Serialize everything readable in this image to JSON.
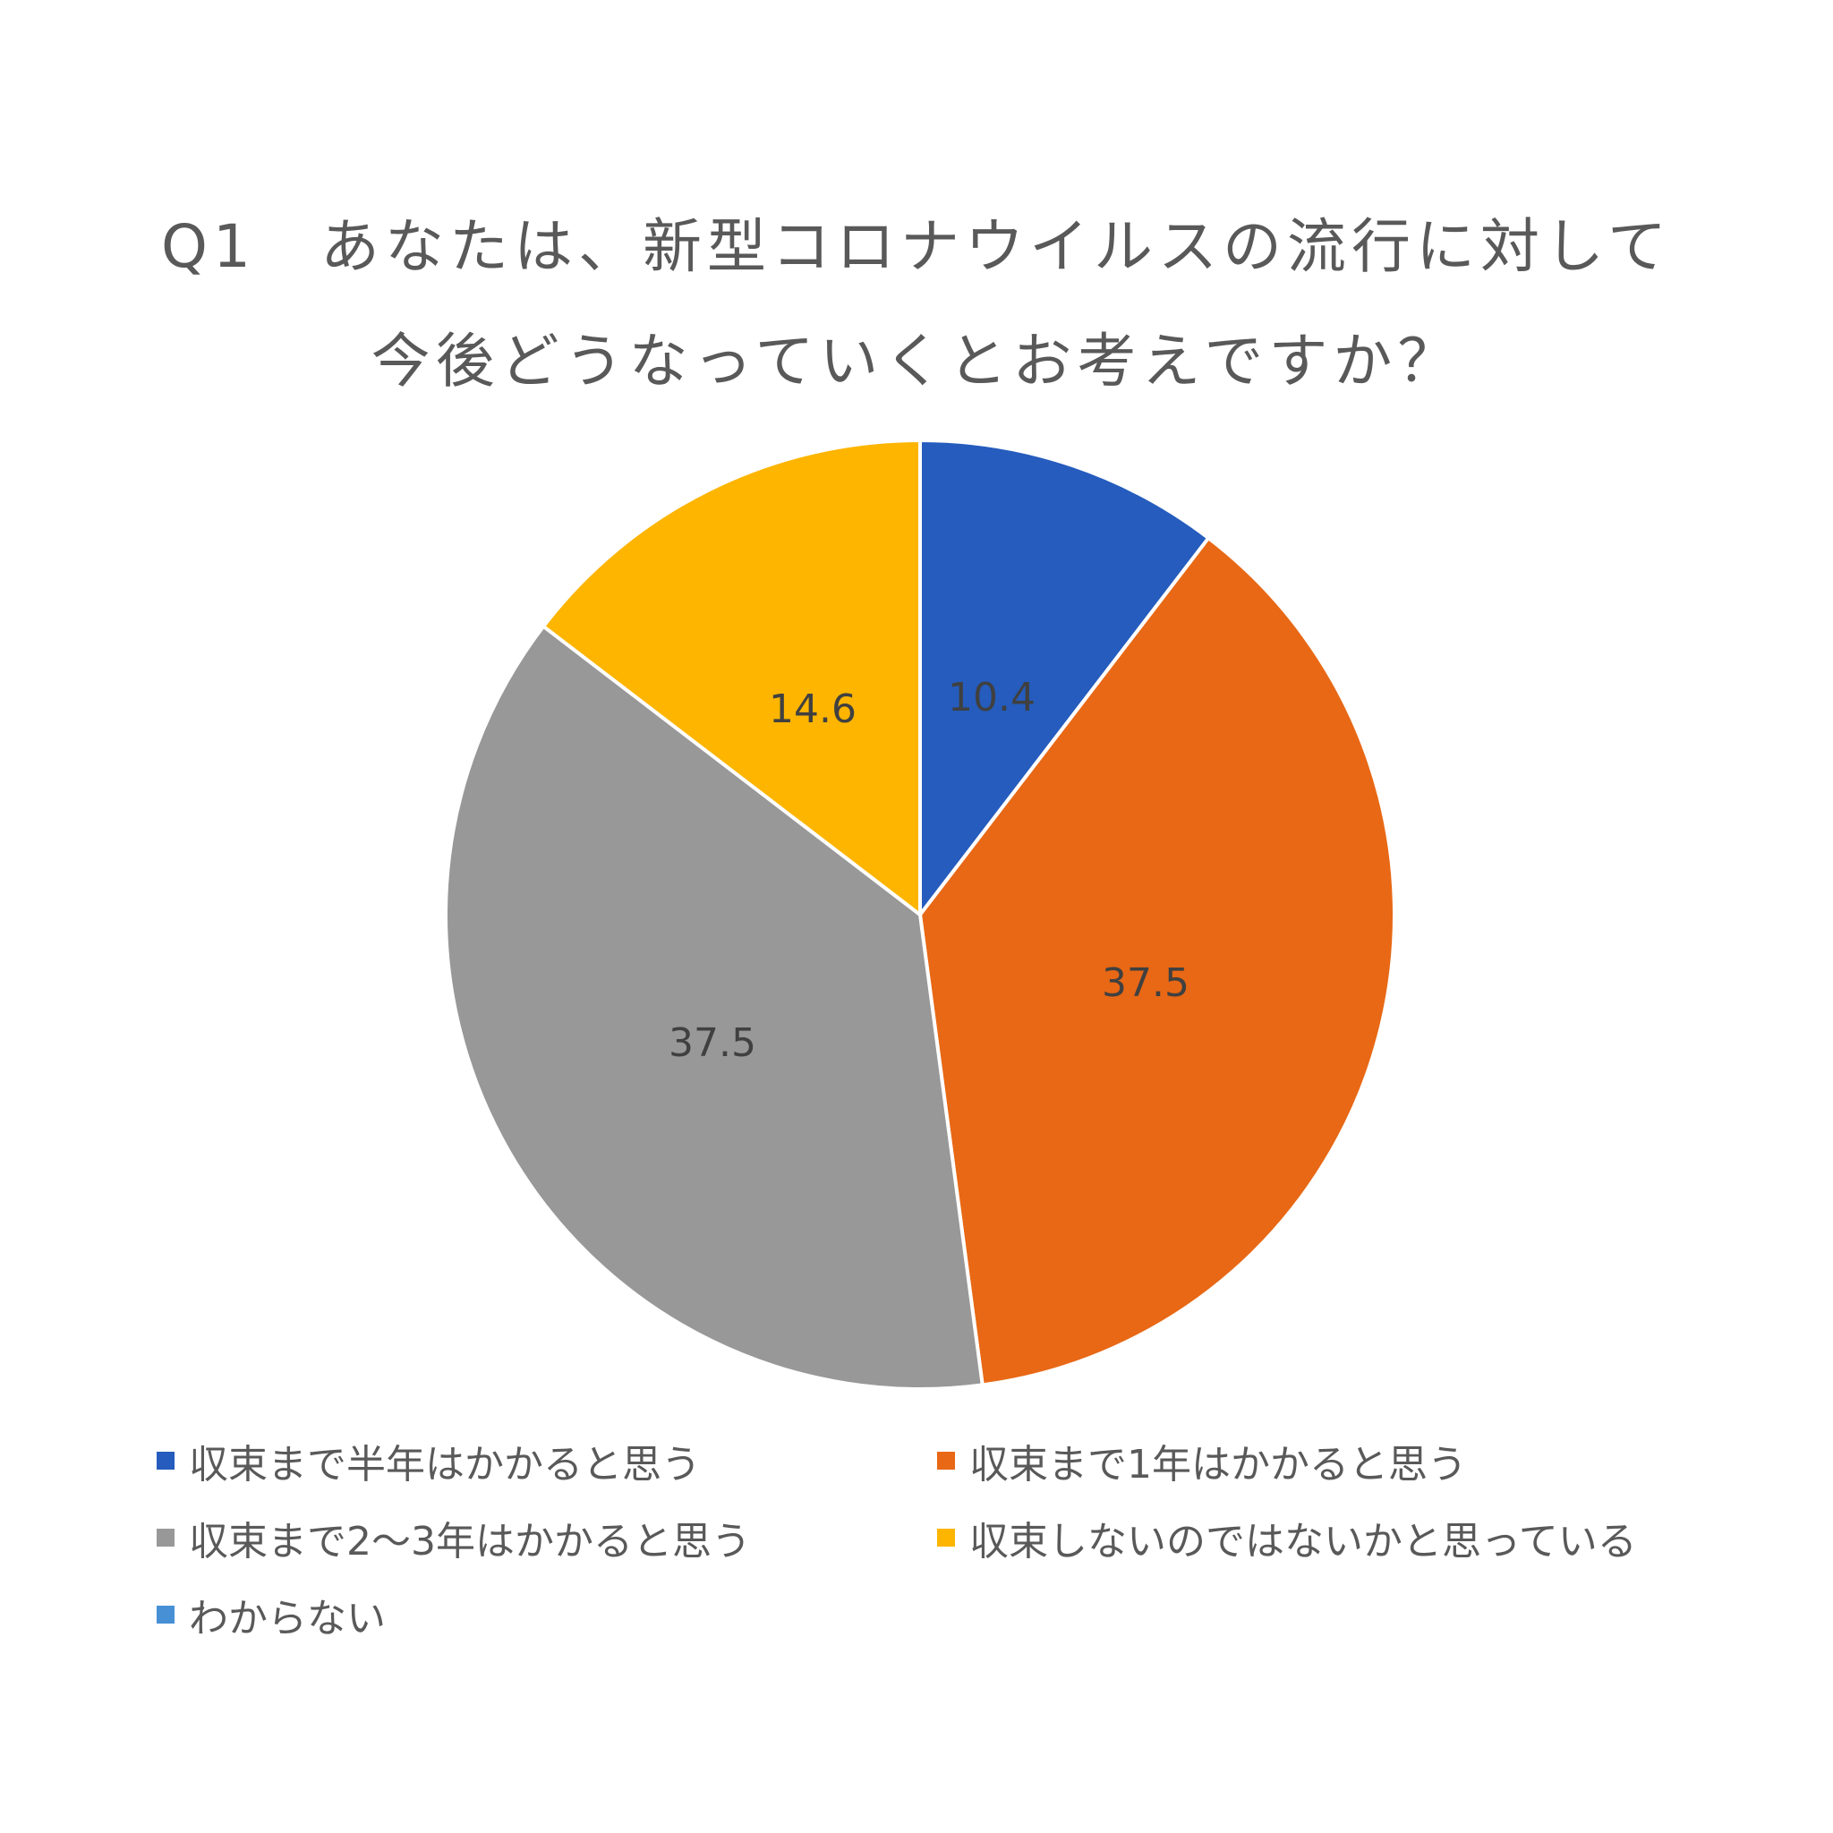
{
  "title": {
    "line1": "Q1　あなたは、新型コロナウイルスの流行に対して",
    "line2": "今後どうなっていくとお考えですか？"
  },
  "legend": [
    {
      "label": "収束まで半年はかかると思う",
      "color": "#255CBD"
    },
    {
      "label": "収束まで1年はかかると思う",
      "color": "#E86815"
    },
    {
      "label": "収束まで2〜3年はかかると思う",
      "color": "#989898"
    },
    {
      "label": "収束しないのではないかと思っている",
      "color": "#FDB500"
    },
    {
      "label": "わからない",
      "color": "#4790D6"
    }
  ],
  "labels": {
    "s0": "10.4",
    "s1": "37.5",
    "s2": "37.5",
    "s3": "14.6"
  },
  "chart_data": {
    "type": "pie",
    "title": "Q1　あなたは、新型コロナウイルスの流行に対して今後どうなっていくとお考えですか？",
    "categories": [
      "収束まで半年はかかると思う",
      "収束まで1年はかかると思う",
      "収束まで2〜3年はかかると思う",
      "収束しないのではないかと思っている",
      "わからない"
    ],
    "values": [
      10.4,
      37.5,
      37.5,
      14.6,
      0
    ],
    "colors": [
      "#255CBD",
      "#E86815",
      "#989898",
      "#FDB500",
      "#4790D6"
    ],
    "data_labels": true,
    "legend_position": "bottom",
    "start_angle": "top, clockwise"
  }
}
